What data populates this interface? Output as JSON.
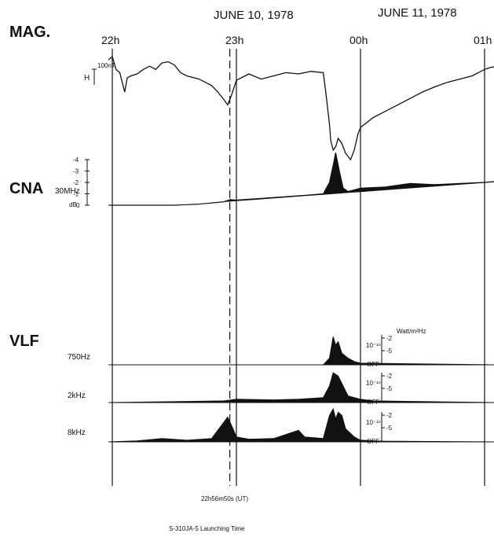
{
  "dates": {
    "day1": "JUNE 10, 1978",
    "day2": "JUNE 11, 1978"
  },
  "hour_labels": [
    {
      "label": "22h",
      "t": 22.0
    },
    {
      "label": "23h",
      "t": 23.0
    },
    {
      "label": "00h",
      "t": 24.0
    },
    {
      "label": "01h",
      "t": 25.0
    }
  ],
  "launch": {
    "time_label": "22h56m50s (UT)",
    "caption": "S-310JA-5 Launching Time",
    "t": 22.947
  },
  "panels": {
    "mag": {
      "label": "MAG.",
      "channel": "H",
      "scale_label": "100nT"
    },
    "cna": {
      "label": "CNA",
      "channel": "30MHz",
      "unit": "dB",
      "ticks": [
        "0",
        "-1",
        "-2",
        "-3",
        "-4"
      ]
    },
    "vlf": {
      "label": "VLF",
      "unit": "Watt/m²Hz",
      "scale_exp": "10⁻¹⁶",
      "scale_ticks": [
        "2",
        "5"
      ],
      "off_label": "OFF"
    }
  },
  "chart_data": {
    "type": "line",
    "x_unit": "hours UT (24 = 00h June 11)",
    "xlim": [
      21.97,
      25.1
    ],
    "grid": false,
    "series": [
      {
        "name": "MAG.",
        "panel": "mag",
        "y_unit": "nT (relative)",
        "points": [
          [
            21.97,
            0
          ],
          [
            22.0,
            5
          ],
          [
            22.03,
            -15
          ],
          [
            22.06,
            -20
          ],
          [
            22.08,
            -35
          ],
          [
            22.1,
            -50
          ],
          [
            22.12,
            -28
          ],
          [
            22.15,
            -25
          ],
          [
            22.2,
            -22
          ],
          [
            22.25,
            -15
          ],
          [
            22.3,
            -10
          ],
          [
            22.35,
            -15
          ],
          [
            22.4,
            -5
          ],
          [
            22.45,
            -3
          ],
          [
            22.5,
            -8
          ],
          [
            22.55,
            -20
          ],
          [
            22.6,
            -25
          ],
          [
            22.7,
            -30
          ],
          [
            22.8,
            -40
          ],
          [
            22.85,
            -50
          ],
          [
            22.9,
            -62
          ],
          [
            22.93,
            -70
          ],
          [
            22.96,
            -55
          ],
          [
            23.0,
            -32
          ],
          [
            23.1,
            -22
          ],
          [
            23.2,
            -30
          ],
          [
            23.3,
            -25
          ],
          [
            23.4,
            -20
          ],
          [
            23.5,
            -22
          ],
          [
            23.6,
            -18
          ],
          [
            23.7,
            -20
          ],
          [
            23.72,
            -50
          ],
          [
            23.75,
            -100
          ],
          [
            23.76,
            -125
          ],
          [
            23.78,
            -140
          ],
          [
            23.8,
            -135
          ],
          [
            23.82,
            -122
          ],
          [
            23.85,
            -130
          ],
          [
            23.88,
            -145
          ],
          [
            23.92,
            -155
          ],
          [
            23.95,
            -140
          ],
          [
            23.98,
            -115
          ],
          [
            24.0,
            -105
          ],
          [
            24.1,
            -90
          ],
          [
            24.2,
            -80
          ],
          [
            24.3,
            -70
          ],
          [
            24.4,
            -60
          ],
          [
            24.5,
            -50
          ],
          [
            24.6,
            -42
          ],
          [
            24.7,
            -35
          ],
          [
            24.8,
            -30
          ],
          [
            24.9,
            -25
          ],
          [
            25.0,
            -15
          ],
          [
            25.05,
            -12
          ],
          [
            25.1,
            -10
          ]
        ]
      },
      {
        "name": "CNA 30MHz",
        "panel": "cna",
        "y_unit": "dB",
        "ylim": [
          -4,
          0
        ],
        "points": [
          [
            21.97,
            0.0
          ],
          [
            22.2,
            0.0
          ],
          [
            22.5,
            0.0
          ],
          [
            22.6,
            -0.05
          ],
          [
            22.7,
            -0.1
          ],
          [
            22.8,
            -0.2
          ],
          [
            22.9,
            -0.3
          ],
          [
            22.95,
            -0.5
          ],
          [
            23.0,
            -0.45
          ],
          [
            23.2,
            -0.6
          ],
          [
            23.4,
            -0.75
          ],
          [
            23.6,
            -0.9
          ],
          [
            23.7,
            -1.0
          ],
          [
            23.75,
            -2.0
          ],
          [
            23.78,
            -3.5
          ],
          [
            23.8,
            -4.6
          ],
          [
            23.83,
            -3.0
          ],
          [
            23.86,
            -1.5
          ],
          [
            23.9,
            -1.2
          ],
          [
            24.0,
            -1.5
          ],
          [
            24.2,
            -1.6
          ],
          [
            24.4,
            -1.9
          ],
          [
            24.6,
            -1.8
          ],
          [
            24.8,
            -1.9
          ],
          [
            25.0,
            -2.0
          ],
          [
            25.1,
            -2.1
          ]
        ]
      },
      {
        "name": "VLF 750Hz",
        "panel": "vlf",
        "y_unit": "10⁻¹⁶ Watt/m²Hz (relative level)",
        "points": [
          [
            21.97,
            0
          ],
          [
            23.7,
            0
          ],
          [
            23.75,
            0.2
          ],
          [
            23.78,
            0.85
          ],
          [
            23.8,
            0.6
          ],
          [
            23.82,
            0.7
          ],
          [
            23.85,
            0.35
          ],
          [
            23.9,
            0.2
          ],
          [
            23.95,
            0.1
          ],
          [
            24.0,
            0.05
          ],
          [
            25.1,
            0
          ]
        ]
      },
      {
        "name": "VLF 2kHz",
        "panel": "vlf",
        "y_unit": "10⁻¹⁶ Watt/m²Hz (relative level)",
        "points": [
          [
            21.97,
            0
          ],
          [
            22.9,
            0.05
          ],
          [
            23.0,
            0.1
          ],
          [
            23.3,
            0.08
          ],
          [
            23.5,
            0.1
          ],
          [
            23.7,
            0.15
          ],
          [
            23.75,
            0.5
          ],
          [
            23.78,
            0.9
          ],
          [
            23.82,
            0.8
          ],
          [
            23.86,
            0.5
          ],
          [
            23.9,
            0.2
          ],
          [
            24.0,
            0.1
          ],
          [
            24.1,
            0.05
          ],
          [
            25.1,
            0
          ]
        ]
      },
      {
        "name": "VLF 8kHz",
        "panel": "vlf",
        "y_unit": "10⁻¹⁶ Watt/m²Hz (relative level)",
        "points": [
          [
            21.97,
            0
          ],
          [
            22.2,
            0.03
          ],
          [
            22.4,
            0.1
          ],
          [
            22.6,
            0.05
          ],
          [
            22.8,
            0.1
          ],
          [
            22.88,
            0.5
          ],
          [
            22.93,
            0.75
          ],
          [
            22.96,
            0.5
          ],
          [
            23.0,
            0.15
          ],
          [
            23.1,
            0.08
          ],
          [
            23.3,
            0.1
          ],
          [
            23.5,
            0.35
          ],
          [
            23.55,
            0.15
          ],
          [
            23.7,
            0.1
          ],
          [
            23.75,
            0.8
          ],
          [
            23.78,
            1.0
          ],
          [
            23.8,
            0.7
          ],
          [
            23.82,
            0.9
          ],
          [
            23.85,
            0.8
          ],
          [
            23.88,
            0.4
          ],
          [
            23.95,
            0.15
          ],
          [
            24.0,
            0.05
          ],
          [
            24.2,
            0.02
          ],
          [
            25.1,
            0
          ]
        ]
      }
    ]
  }
}
